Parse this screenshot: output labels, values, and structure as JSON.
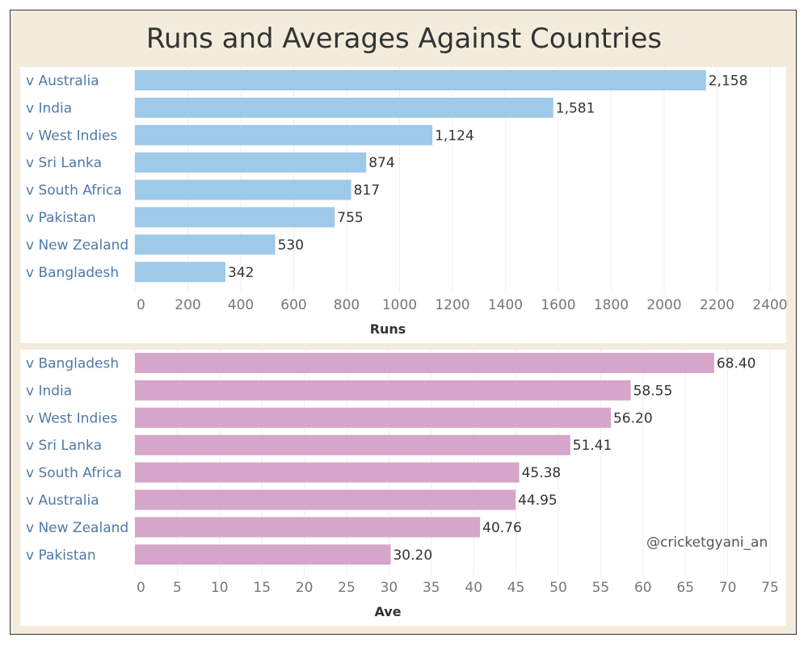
{
  "title": "Runs and Averages Against Countries",
  "watermark": "@cricketgyani_an",
  "colors": {
    "runs_bar": "#9fc9e8",
    "ave_bar": "#d5a6c9",
    "category_text": "#4e79a7",
    "background": "#f3ecdc"
  },
  "chart_data": [
    {
      "type": "bar",
      "orientation": "horizontal",
      "categories": [
        "v Australia",
        "v India",
        "v West Indies",
        "v Sri Lanka",
        "v South Africa",
        "v Pakistan",
        "v New Zealand",
        "v Bangladesh"
      ],
      "values": [
        2158,
        1581,
        1124,
        874,
        817,
        755,
        530,
        342
      ],
      "value_labels": [
        "2,158",
        "1,581",
        "1,124",
        "874",
        "817",
        "755",
        "530",
        "342"
      ],
      "xlabel": "Runs",
      "ylabel": "",
      "xlim": [
        0,
        2400
      ],
      "xticks": [
        "0",
        "200",
        "400",
        "600",
        "800",
        "1000",
        "1200",
        "1400",
        "1600",
        "1800",
        "2000",
        "2200",
        "2400"
      ],
      "grid": true
    },
    {
      "type": "bar",
      "orientation": "horizontal",
      "categories": [
        "v Bangladesh",
        "v India",
        "v West Indies",
        "v Sri Lanka",
        "v South Africa",
        "v Australia",
        "v New Zealand",
        "v Pakistan"
      ],
      "values": [
        68.4,
        58.55,
        56.2,
        51.41,
        45.38,
        44.95,
        40.76,
        30.2
      ],
      "value_labels": [
        "68.40",
        "58.55",
        "56.20",
        "51.41",
        "45.38",
        "44.95",
        "40.76",
        "30.20"
      ],
      "xlabel": "Ave",
      "ylabel": "",
      "xlim": [
        0,
        75
      ],
      "xticks": [
        "0",
        "5",
        "10",
        "15",
        "20",
        "25",
        "30",
        "35",
        "40",
        "45",
        "50",
        "55",
        "60",
        "65",
        "70",
        "75"
      ],
      "grid": true
    }
  ]
}
